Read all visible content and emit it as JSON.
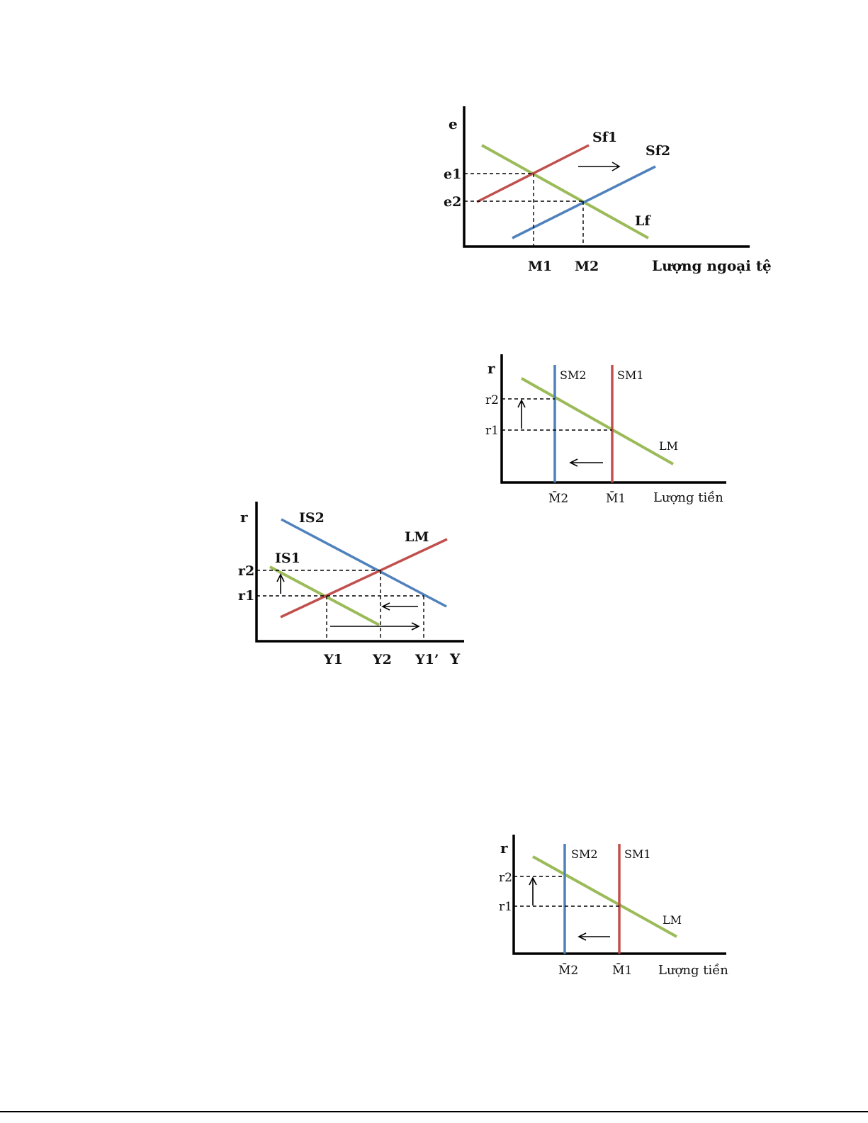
{
  "colors": {
    "demand_curve": "#9bbb59",
    "supply_curve_1": "#c0504d",
    "supply_curve_2": "#4f81bd"
  },
  "fx_diagram": {
    "y_axis_label": "e",
    "x_axis_label": "Lượng ngoại tệ",
    "y_ticks": [
      "e1",
      "e2"
    ],
    "x_ticks": [
      "M1",
      "M2"
    ],
    "curves": {
      "supply1": "Sf1",
      "supply2": "Sf2",
      "demand": "Lf"
    }
  },
  "money_diagram_1": {
    "y_axis_label": "r",
    "x_axis_label": "Lượng tiền",
    "y_ticks": [
      "r2",
      "r1"
    ],
    "x_ticks": [
      "M̄2",
      "M̄1"
    ],
    "curves": {
      "supply2": "SM2",
      "supply1": "SM1",
      "demand": "LM"
    }
  },
  "islm_diagram": {
    "y_axis_label": "r",
    "x_axis_label": "Y",
    "y_ticks": [
      "r2",
      "r1"
    ],
    "x_ticks": [
      "Y1",
      "Y2",
      "Y1’"
    ],
    "curves": {
      "is2": "IS2",
      "is1": "IS1",
      "lm": "LM"
    }
  },
  "money_diagram_2": {
    "y_axis_label": "r",
    "x_axis_label": "Lượng tiền",
    "y_ticks": [
      "r2",
      "r1"
    ],
    "x_ticks": [
      "M̄2",
      "M̄1"
    ],
    "curves": {
      "supply2": "SM2",
      "supply1": "SM1",
      "demand": "LM"
    }
  }
}
